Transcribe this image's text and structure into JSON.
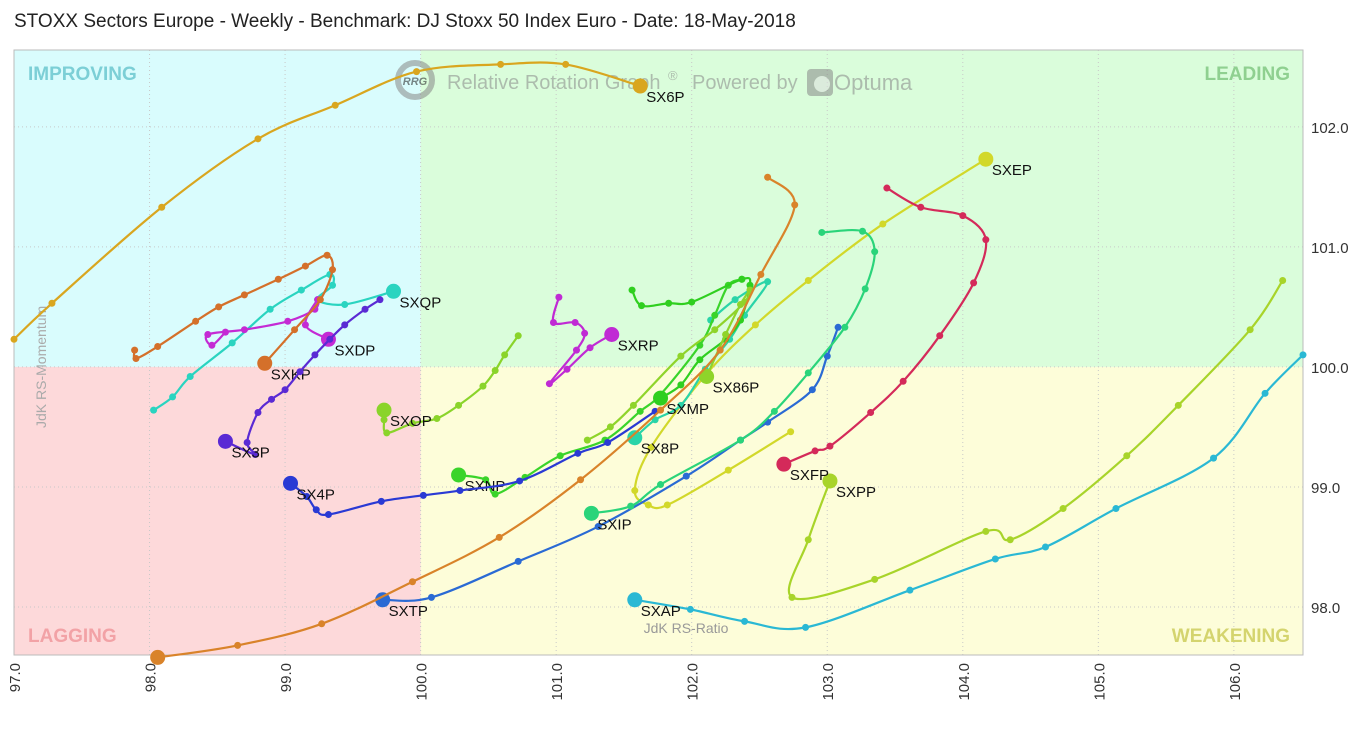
{
  "title": "STOXX Sectors Europe - Weekly - Benchmark: DJ Stoxx 50 Index Euro - Date: 18-May-2018",
  "watermark": {
    "logo_text": "RRG",
    "text": "Relative Rotation Graph",
    "registered": "®",
    "powered_by": "Powered by",
    "brand": "Optuma"
  },
  "chart_data": {
    "type": "scatter",
    "subtype": "relative-rotation-graph",
    "xlabel": "JdK RS-Ratio",
    "ylabel": "JdK RS-Momentum",
    "xlim": [
      97.0,
      106.51
    ],
    "ylim": [
      97.6,
      102.64
    ],
    "center": [
      100.0,
      100.0
    ],
    "grid": true,
    "x_ticks": [
      "97.0",
      "98.0",
      "99.0",
      "100.0",
      "101.0",
      "102.0",
      "103.0",
      "104.0",
      "105.0",
      "106.0"
    ],
    "y_ticks": [
      "98.0",
      "99.0",
      "100.0",
      "101.0",
      "102.0"
    ],
    "quadrants": {
      "improving": {
        "label": "IMPROVING",
        "bg": "#d9fcfd",
        "fg": "#7ccfd6"
      },
      "leading": {
        "label": "LEADING",
        "bg": "#dafddb",
        "fg": "#8fd090"
      },
      "weakening": {
        "label": "WEAKENING",
        "bg": "#fdfdd9",
        "fg": "#d4d46e"
      },
      "lagging": {
        "label": "LAGGING",
        "bg": "#fdd9da",
        "fg": "#f2a2a6"
      }
    },
    "series": [
      {
        "name": "SX6P",
        "color": "#d9a61f",
        "x": [
          97.0,
          97.28,
          98.09,
          98.8,
          99.37,
          99.97,
          100.59,
          101.07,
          101.62
        ],
        "y": [
          100.23,
          100.53,
          101.33,
          101.9,
          102.18,
          102.46,
          102.52,
          102.52,
          102.34
        ]
      },
      {
        "name": "SXEP",
        "color": "#d2d82a",
        "x": [
          102.73,
          102.27,
          101.82,
          101.68,
          101.58,
          101.7,
          102.1,
          102.47,
          102.86,
          103.41,
          104.17
        ],
        "y": [
          99.46,
          99.14,
          98.85,
          98.85,
          98.97,
          99.33,
          99.93,
          100.35,
          100.72,
          101.19,
          101.73
        ]
      },
      {
        "name": "SXPP",
        "color": "#a8d42a",
        "x": [
          106.36,
          106.12,
          105.59,
          105.21,
          104.74,
          104.35,
          104.17,
          103.35,
          102.74,
          102.86,
          103.02
        ],
        "y": [
          100.72,
          100.31,
          99.68,
          99.26,
          98.82,
          98.56,
          98.63,
          98.23,
          98.08,
          98.56,
          99.05
        ]
      },
      {
        "name": "SXFP",
        "color": "#d42a5a",
        "x": [
          103.44,
          103.69,
          104.0,
          104.17,
          104.08,
          103.83,
          103.56,
          103.32,
          103.02,
          102.91,
          102.68
        ],
        "y": [
          101.49,
          101.33,
          101.26,
          101.06,
          100.7,
          100.26,
          99.88,
          99.62,
          99.34,
          99.3,
          99.19
        ]
      },
      {
        "name": "SXAP",
        "color": "#2ab8d4",
        "x": [
          106.51,
          106.23,
          105.85,
          105.13,
          104.61,
          104.24,
          103.61,
          102.84,
          102.39,
          101.99,
          101.58
        ],
        "y": [
          100.1,
          99.78,
          99.24,
          98.82,
          98.5,
          98.4,
          98.14,
          97.83,
          97.88,
          97.98,
          98.06
        ]
      },
      {
        "name": "SXTP",
        "color": "#2a6ad4",
        "x": [
          103.08,
          103.0,
          102.89,
          102.56,
          102.36,
          101.96,
          101.31,
          100.72,
          100.08,
          99.72
        ],
        "y": [
          100.33,
          100.09,
          99.81,
          99.54,
          99.39,
          99.09,
          98.67,
          98.38,
          98.08,
          98.06
        ]
      },
      {
        "name": "SXIP",
        "color": "#2ad47a",
        "x": [
          102.96,
          103.26,
          103.35,
          103.28,
          103.13,
          102.86,
          102.61,
          102.36,
          101.77,
          101.55,
          101.26
        ],
        "y": [
          101.12,
          101.13,
          100.96,
          100.65,
          100.33,
          99.95,
          99.63,
          99.39,
          99.02,
          98.84,
          98.78
        ]
      },
      {
        "name": "SX8P",
        "color": "#2ad4a8",
        "x": [
          102.14,
          102.32,
          102.56,
          102.39,
          102.28,
          102.1,
          101.92,
          101.73,
          101.58
        ],
        "y": [
          100.39,
          100.56,
          100.71,
          100.43,
          100.23,
          99.98,
          99.68,
          99.56,
          99.41
        ]
      },
      {
        "name": "SXNP",
        "color": "#3ad42a",
        "x": [
          102.37,
          102.27,
          102.17,
          102.06,
          101.77,
          101.62,
          101.36,
          101.03,
          100.77,
          100.55,
          100.48,
          100.28
        ],
        "y": [
          100.73,
          100.68,
          100.43,
          100.18,
          99.77,
          99.63,
          99.39,
          99.26,
          99.08,
          98.94,
          99.06,
          99.1
        ]
      },
      {
        "name": "SXMP",
        "color": "#2fcf1f",
        "x": [
          101.56,
          101.63,
          101.83,
          102.0,
          102.37,
          102.43,
          102.36,
          102.25,
          102.06,
          101.92,
          101.77
        ],
        "y": [
          100.64,
          100.51,
          100.53,
          100.54,
          100.73,
          100.68,
          100.39,
          100.23,
          100.06,
          99.85,
          99.74
        ]
      },
      {
        "name": "SX86P",
        "color": "#8fd42a",
        "x": [
          101.23,
          101.4,
          101.57,
          101.92,
          102.17,
          102.39,
          102.43,
          102.36,
          102.25,
          102.11
        ],
        "y": [
          99.39,
          99.5,
          99.68,
          100.09,
          100.31,
          100.54,
          100.64,
          100.52,
          100.27,
          99.92
        ]
      },
      {
        "name": "SXRP",
        "color": "#c02ad4",
        "x": [
          101.02,
          100.98,
          101.14,
          101.21,
          101.15,
          100.95,
          101.08,
          101.25,
          101.41
        ],
        "y": [
          100.58,
          100.37,
          100.37,
          100.28,
          100.14,
          99.86,
          99.98,
          100.16,
          100.27
        ]
      },
      {
        "name": "SXQP",
        "color": "#2ad4c0",
        "x": [
          98.03,
          98.17,
          98.3,
          98.61,
          98.89,
          99.12,
          99.33,
          99.35,
          99.24,
          99.44,
          99.8
        ],
        "y": [
          99.64,
          99.75,
          99.92,
          100.2,
          100.48,
          100.64,
          100.77,
          100.68,
          100.56,
          100.52,
          100.63
        ]
      },
      {
        "name": "SXDP",
        "color": "#c42ad4",
        "x": [
          98.56,
          98.46,
          98.43,
          98.7,
          99.02,
          99.22,
          99.24,
          99.15,
          99.32
        ],
        "y": [
          100.29,
          100.18,
          100.27,
          100.31,
          100.38,
          100.48,
          100.56,
          100.35,
          100.23
        ]
      },
      {
        "name": "SXKP",
        "color": "#d4702a",
        "x": [
          97.89,
          97.9,
          98.06,
          98.34,
          98.51,
          98.7,
          98.95,
          99.15,
          99.31,
          99.35,
          99.26,
          99.07,
          98.85
        ],
        "y": [
          100.14,
          100.07,
          100.17,
          100.38,
          100.5,
          100.6,
          100.73,
          100.84,
          100.93,
          100.81,
          100.56,
          100.31,
          100.03
        ]
      },
      {
        "name": "SX3P",
        "color": "#5a2ad4",
        "x": [
          99.7,
          99.59,
          99.44,
          99.33,
          99.22,
          99.11,
          99.0,
          98.9,
          98.8,
          98.72,
          98.78,
          98.56
        ],
        "y": [
          100.56,
          100.48,
          100.35,
          100.23,
          100.1,
          99.96,
          99.81,
          99.73,
          99.62,
          99.37,
          99.27,
          99.38
        ]
      },
      {
        "name": "SX4P",
        "color": "#2a3ad4",
        "x": [
          101.73,
          101.38,
          101.16,
          100.73,
          100.29,
          100.02,
          99.71,
          99.32,
          99.23,
          99.16,
          99.04
        ],
        "y": [
          99.63,
          99.37,
          99.28,
          99.05,
          98.97,
          98.93,
          98.88,
          98.77,
          98.81,
          98.92,
          99.03
        ]
      },
      {
        "name": "SXOP",
        "color": "#8ad42a",
        "x": [
          100.72,
          100.62,
          100.55,
          100.46,
          100.28,
          100.12,
          99.94,
          99.75,
          99.73,
          99.73
        ],
        "y": [
          100.26,
          100.1,
          99.97,
          99.84,
          99.68,
          99.57,
          99.53,
          99.45,
          99.56,
          99.64
        ]
      },
      {
        "name": "",
        "color": "#d9832a",
        "x": [
          102.56,
          102.76,
          102.51,
          102.21,
          101.77,
          101.18,
          100.58,
          99.94,
          99.27,
          98.65,
          98.06
        ],
        "y": [
          101.58,
          101.35,
          100.77,
          100.14,
          99.64,
          99.06,
          98.58,
          98.21,
          97.86,
          97.68,
          97.58
        ]
      }
    ]
  }
}
